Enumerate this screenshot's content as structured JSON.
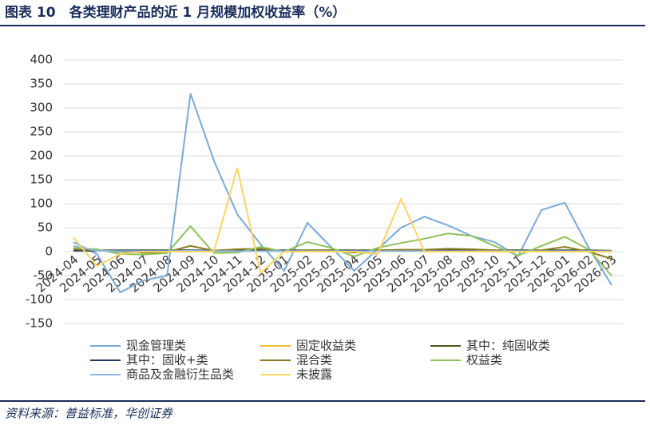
{
  "header": {
    "title": "图表 10　各类理财产品的近 1 月规模加权收益率（%）"
  },
  "chart_data": {
    "type": "line",
    "categories": [
      "2024-04",
      "2024-05",
      "2024-06",
      "2024-07",
      "2024-08",
      "2024-09",
      "2024-10",
      "2024-11",
      "2024-12",
      "2025-01",
      "2025-02",
      "2025-03",
      "2025-04",
      "2025-05",
      "2025-06",
      "2025-07",
      "2025-08",
      "2025-09",
      "2025-10",
      "2025-11",
      "2025-12",
      "2026-01",
      "2026-02",
      "2026-03"
    ],
    "ylim": [
      -150,
      400
    ],
    "yticks": [
      -150,
      -100,
      -50,
      0,
      50,
      100,
      150,
      200,
      250,
      300,
      350,
      400
    ],
    "grid": true,
    "series": [
      {
        "name": "现金管理类",
        "color": "#7aaad8",
        "values": [
          20,
          -5,
          -85,
          -60,
          -50,
          330,
          190,
          78,
          15,
          -40,
          60,
          10,
          -40,
          5,
          50,
          73,
          55,
          33,
          20,
          -10,
          87,
          102,
          10,
          -70
        ]
      },
      {
        "name": "固定收益类",
        "color": "#f3bf2f",
        "values": [
          3,
          3,
          2,
          2,
          2,
          3,
          2,
          3,
          3,
          2,
          2,
          3,
          2,
          3,
          3,
          3,
          3,
          3,
          2,
          2,
          2,
          2,
          2,
          0
        ]
      },
      {
        "name": "其中：纯固收类",
        "color": "#4c5620",
        "values": [
          4,
          3,
          3,
          3,
          3,
          3,
          2,
          3,
          3,
          3,
          3,
          3,
          3,
          3,
          3,
          3,
          3,
          3,
          3,
          3,
          3,
          3,
          3,
          2
        ]
      },
      {
        "name": "其中：固收+类",
        "color": "#203864",
        "values": [
          2,
          2,
          2,
          2,
          2,
          3,
          2,
          2,
          2,
          2,
          2,
          2,
          2,
          2,
          2,
          2,
          2,
          2,
          2,
          2,
          2,
          2,
          2,
          1
        ]
      },
      {
        "name": "混合类",
        "color": "#8c7a1c",
        "values": [
          5,
          3,
          0,
          -2,
          -1,
          12,
          2,
          5,
          6,
          0,
          3,
          3,
          -2,
          3,
          4,
          4,
          6,
          5,
          3,
          1,
          3,
          10,
          0,
          -15
        ]
      },
      {
        "name": "权益类",
        "color": "#8fc15a",
        "values": [
          8,
          5,
          -5,
          -6,
          -3,
          53,
          -3,
          -2,
          10,
          0,
          20,
          8,
          -10,
          8,
          18,
          27,
          38,
          33,
          12,
          -8,
          12,
          31,
          5,
          -50
        ]
      },
      {
        "name": "商品及金融衍生品类",
        "color": "#8db8e0",
        "values": [
          12,
          2,
          1,
          1,
          1,
          2,
          1,
          1,
          1,
          1,
          1,
          1,
          1,
          1,
          1,
          1,
          1,
          1,
          1,
          1,
          1,
          1,
          1,
          1
        ]
      },
      {
        "name": "未披露",
        "color": "#fcd462",
        "values": [
          30,
          -30,
          -5,
          0,
          0,
          0,
          0,
          175,
          -45,
          0,
          0,
          0,
          0,
          -5,
          110,
          0,
          0,
          0,
          0,
          0,
          0,
          0,
          0,
          0
        ]
      }
    ]
  },
  "footer": {
    "source": "资料来源：普益标准，华创证券"
  }
}
